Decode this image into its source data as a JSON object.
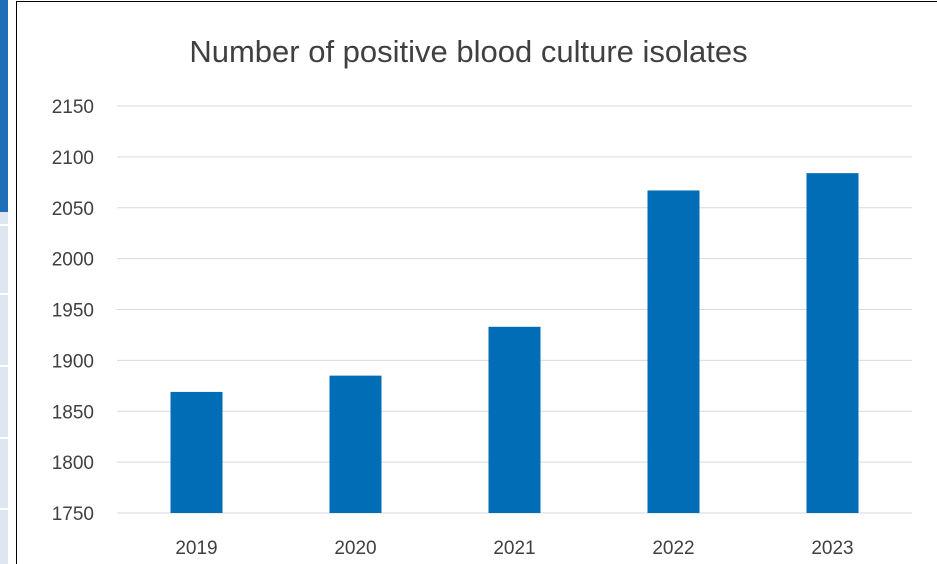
{
  "chart_data": {
    "type": "bar",
    "title": "Number of positive blood culture isolates",
    "xlabel": "",
    "ylabel": "",
    "categories": [
      "2019",
      "2020",
      "2021",
      "2022",
      "2023"
    ],
    "values": [
      1869,
      1885,
      1933,
      2067,
      2084
    ],
    "ylim": [
      1750,
      2150
    ],
    "yticks": [
      "1750",
      "1800",
      "1850",
      "1900",
      "1950",
      "2000",
      "2050",
      "2100",
      "2150"
    ],
    "grid": true,
    "legend": "none",
    "colors": {
      "bar": "#006db6",
      "grid": "#d9d9d9",
      "text": "#404040"
    }
  }
}
